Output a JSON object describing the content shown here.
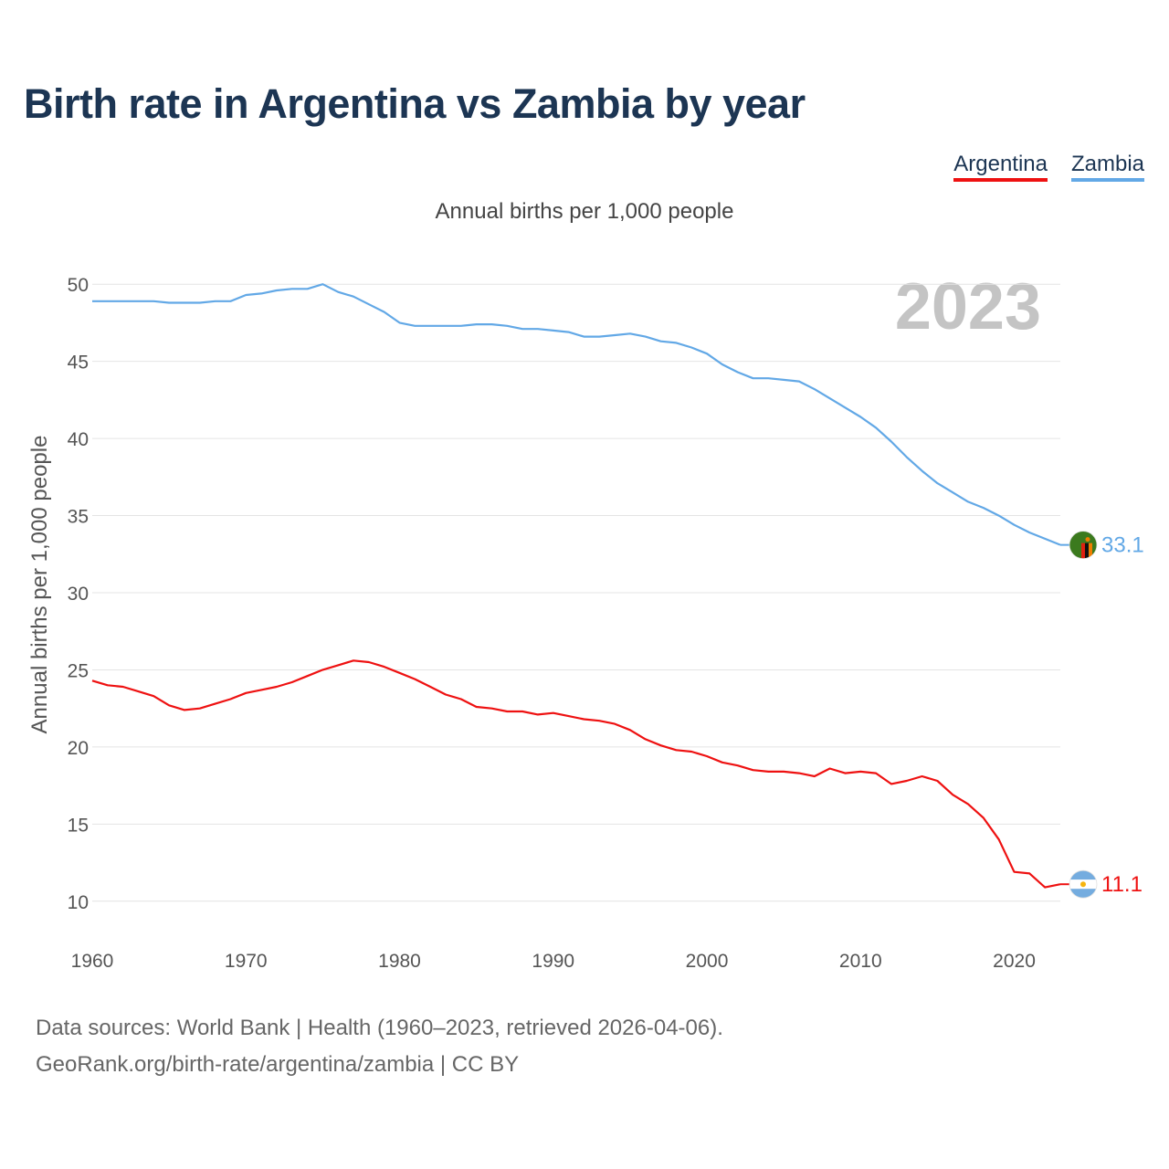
{
  "title": "Birth rate in Argentina vs Zambia by year",
  "legend": [
    {
      "label": "Argentina",
      "color": "#ee1111"
    },
    {
      "label": "Zambia",
      "color": "#62a8e6"
    }
  ],
  "chart_data": {
    "type": "line",
    "title": "Annual births per 1,000 people",
    "ylabel": "Annual births per 1,000 people",
    "xlabel": "",
    "year_label": "2023",
    "xlim": [
      1960,
      2023
    ],
    "ylim": [
      7.5,
      52.5
    ],
    "x_ticks": [
      1960,
      1970,
      1980,
      1990,
      2000,
      2010,
      2020
    ],
    "y_ticks": [
      10,
      15,
      20,
      25,
      30,
      35,
      40,
      45,
      50
    ],
    "x": [
      1960,
      1961,
      1962,
      1963,
      1964,
      1965,
      1966,
      1967,
      1968,
      1969,
      1970,
      1971,
      1972,
      1973,
      1974,
      1975,
      1976,
      1977,
      1978,
      1979,
      1980,
      1981,
      1982,
      1983,
      1984,
      1985,
      1986,
      1987,
      1988,
      1989,
      1990,
      1991,
      1992,
      1993,
      1994,
      1995,
      1996,
      1997,
      1998,
      1999,
      2000,
      2001,
      2002,
      2003,
      2004,
      2005,
      2006,
      2007,
      2008,
      2009,
      2010,
      2011,
      2012,
      2013,
      2014,
      2015,
      2016,
      2017,
      2018,
      2019,
      2020,
      2021,
      2022,
      2023
    ],
    "series": [
      {
        "name": "Zambia",
        "color": "#62a8e6",
        "end_label": "33.1",
        "flag_icon": "zambia-flag-icon",
        "values": [
          48.9,
          48.9,
          48.9,
          48.9,
          48.9,
          48.8,
          48.8,
          48.8,
          48.9,
          48.9,
          49.3,
          49.4,
          49.6,
          49.7,
          49.7,
          50.0,
          49.5,
          49.2,
          48.7,
          48.2,
          47.5,
          47.3,
          47.3,
          47.3,
          47.3,
          47.4,
          47.4,
          47.3,
          47.1,
          47.1,
          47.0,
          46.9,
          46.6,
          46.6,
          46.7,
          46.8,
          46.6,
          46.3,
          46.2,
          45.9,
          45.5,
          44.8,
          44.3,
          43.9,
          43.9,
          43.8,
          43.7,
          43.2,
          42.6,
          42.0,
          41.4,
          40.7,
          39.8,
          38.8,
          37.9,
          37.1,
          36.5,
          35.9,
          35.5,
          35.0,
          34.4,
          33.9,
          33.5,
          33.1
        ]
      },
      {
        "name": "Argentina",
        "color": "#ee1111",
        "end_label": "11.1",
        "flag_icon": "argentina-flag-icon",
        "values": [
          24.3,
          24.0,
          23.9,
          23.6,
          23.3,
          22.7,
          22.4,
          22.5,
          22.8,
          23.1,
          23.5,
          23.7,
          23.9,
          24.2,
          24.6,
          25.0,
          25.3,
          25.6,
          25.5,
          25.2,
          24.8,
          24.4,
          23.9,
          23.4,
          23.1,
          22.6,
          22.5,
          22.3,
          22.3,
          22.1,
          22.2,
          22.0,
          21.8,
          21.7,
          21.5,
          21.1,
          20.5,
          20.1,
          19.8,
          19.7,
          19.4,
          19.0,
          18.8,
          18.5,
          18.4,
          18.4,
          18.3,
          18.1,
          18.6,
          18.3,
          18.4,
          18.3,
          17.6,
          17.8,
          18.1,
          17.8,
          16.9,
          16.3,
          15.4,
          14.0,
          11.9,
          11.8,
          10.9,
          11.1
        ]
      }
    ]
  },
  "sources": {
    "line1": "Data sources: World Bank | Health (1960–2023, retrieved 2026-04-06).",
    "line2": "GeoRank.org/birth-rate/argentina/zambia | CC BY"
  }
}
